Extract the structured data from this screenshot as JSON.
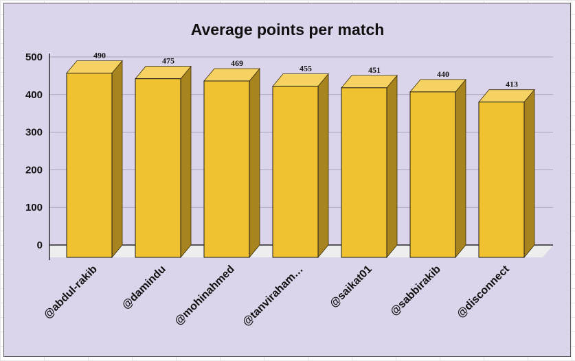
{
  "chart_data": {
    "type": "bar",
    "title": "Average points per match",
    "xlabel": "",
    "ylabel": "",
    "categories": [
      "@abdul-rakib",
      "@damindu",
      "@mohinahmed",
      "@tanviraham…",
      "@saikat01",
      "@sabbirakib",
      "@disconnect"
    ],
    "values": [
      490,
      475,
      469,
      455,
      451,
      440,
      413
    ],
    "ylim": [
      0,
      500
    ],
    "yticks": [
      0,
      100,
      200,
      300,
      400,
      500
    ],
    "grid": true,
    "legend": "none",
    "style": "3d-column"
  },
  "colors": {
    "background": "#dcd4ea",
    "bar_front": "#f0c232",
    "bar_side": "#a8841e",
    "bar_top": "#f5d262",
    "floor": "#eeeeee",
    "gridline": "#a9a3b8"
  }
}
